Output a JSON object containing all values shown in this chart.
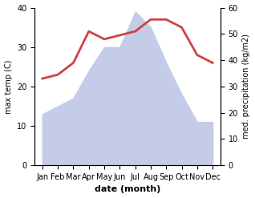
{
  "months": [
    "Jan",
    "Feb",
    "Mar",
    "Apr",
    "May",
    "Jun",
    "Jul",
    "Aug",
    "Sep",
    "Oct",
    "Nov",
    "Dec"
  ],
  "temp": [
    22,
    23,
    26,
    34,
    32,
    33,
    34,
    37,
    37,
    35,
    28,
    26
  ],
  "precip": [
    13,
    15,
    17,
    24,
    30,
    30,
    39,
    35,
    26,
    18,
    11,
    11
  ],
  "temp_ylim": [
    0,
    40
  ],
  "precip_ylim": [
    0,
    60
  ],
  "left_yticks": [
    0,
    10,
    20,
    30,
    40
  ],
  "right_yticks": [
    0,
    10,
    20,
    30,
    40,
    50,
    60
  ],
  "temp_color": "#cc4444",
  "precip_fill_color": "#c5cce8",
  "xlabel": "date (month)",
  "ylabel_left": "max temp (C)",
  "ylabel_right": "med. precipitation (kg/m2)",
  "temp_linewidth": 2.0,
  "bg_color": "#ffffff"
}
